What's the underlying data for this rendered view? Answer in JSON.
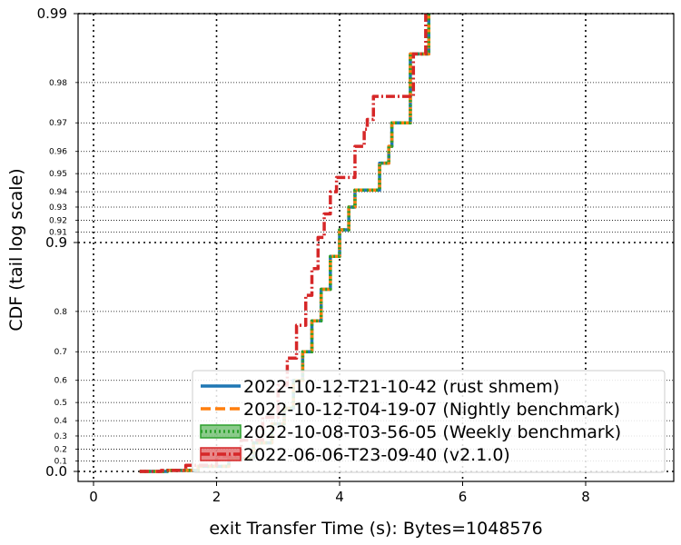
{
  "chart_data": {
    "type": "line",
    "xlabel": "exit Transfer Time (s): Bytes=1048576",
    "ylabel": "CDF (tail log scale)",
    "xlim": [
      -0.3,
      9.4
    ],
    "x_ticks": [
      0,
      2,
      4,
      6,
      8
    ],
    "y_scale": "tail-log",
    "y_major_ticks": [
      {
        "value": 0.0,
        "label": "0.0"
      },
      {
        "value": 0.9,
        "label": "0.9"
      },
      {
        "value": 0.99,
        "label": "0.99"
      }
    ],
    "y_minor_ticks": [
      {
        "value": 0.1,
        "label": "0.1"
      },
      {
        "value": 0.2,
        "label": "0.2"
      },
      {
        "value": 0.3,
        "label": "0.3"
      },
      {
        "value": 0.4,
        "label": "0.4"
      },
      {
        "value": 0.5,
        "label": "0.5"
      },
      {
        "value": 0.6,
        "label": "0.6"
      },
      {
        "value": 0.7,
        "label": "0.7"
      },
      {
        "value": 0.8,
        "label": "0.8"
      },
      {
        "value": 0.91,
        "label": "0.91"
      },
      {
        "value": 0.92,
        "label": "0.92"
      },
      {
        "value": 0.93,
        "label": "0.93"
      },
      {
        "value": 0.94,
        "label": "0.94"
      },
      {
        "value": 0.95,
        "label": "0.95"
      },
      {
        "value": 0.96,
        "label": "0.96"
      },
      {
        "value": 0.97,
        "label": "0.97"
      },
      {
        "value": 0.98,
        "label": "0.98"
      }
    ],
    "grid": true,
    "legend_position": "lower-right",
    "series": [
      {
        "name": "2022-10-12-T21-10-42 (rust shmem)",
        "color": "#1f77b4",
        "style": "solid",
        "points": [
          [
            0.75,
            0.0
          ],
          [
            1.2,
            0.01
          ],
          [
            1.7,
            0.05
          ],
          [
            2.2,
            0.12
          ],
          [
            2.6,
            0.25
          ],
          [
            2.9,
            0.38
          ],
          [
            3.1,
            0.47
          ],
          [
            3.25,
            0.6
          ],
          [
            3.4,
            0.7
          ],
          [
            3.55,
            0.78
          ],
          [
            3.7,
            0.84
          ],
          [
            3.85,
            0.885
          ],
          [
            4.0,
            0.912
          ],
          [
            4.15,
            0.93
          ],
          [
            4.25,
            0.941
          ],
          [
            4.6,
            0.941
          ],
          [
            4.65,
            0.955
          ],
          [
            4.8,
            0.962
          ],
          [
            4.85,
            0.97
          ],
          [
            5.1,
            0.97
          ],
          [
            5.15,
            0.985
          ],
          [
            5.35,
            0.985
          ],
          [
            5.45,
            0.99
          ]
        ]
      },
      {
        "name": "2022-10-12-T04-19-07 (Nightly benchmark)",
        "color": "#ff7f0e",
        "style": "dashed",
        "points": [
          [
            0.75,
            0.0
          ],
          [
            1.2,
            0.01
          ],
          [
            1.7,
            0.05
          ],
          [
            2.2,
            0.12
          ],
          [
            2.6,
            0.25
          ],
          [
            2.9,
            0.38
          ],
          [
            3.1,
            0.47
          ],
          [
            3.25,
            0.6
          ],
          [
            3.4,
            0.7
          ],
          [
            3.55,
            0.78
          ],
          [
            3.7,
            0.84
          ],
          [
            3.85,
            0.885
          ],
          [
            4.0,
            0.912
          ],
          [
            4.15,
            0.93
          ],
          [
            4.25,
            0.941
          ],
          [
            4.6,
            0.941
          ],
          [
            4.65,
            0.955
          ],
          [
            4.8,
            0.962
          ],
          [
            4.85,
            0.97
          ],
          [
            5.1,
            0.97
          ],
          [
            5.15,
            0.985
          ],
          [
            5.35,
            0.985
          ],
          [
            5.45,
            0.99
          ]
        ]
      },
      {
        "name": "2022-10-08-T03-56-05 (Weekly benchmark)",
        "color": "#2ca02c",
        "style": "dotted",
        "points": [
          [
            0.75,
            0.0
          ],
          [
            1.2,
            0.01
          ],
          [
            1.7,
            0.05
          ],
          [
            2.2,
            0.12
          ],
          [
            2.6,
            0.25
          ],
          [
            2.9,
            0.38
          ],
          [
            3.1,
            0.47
          ],
          [
            3.25,
            0.6
          ],
          [
            3.4,
            0.7
          ],
          [
            3.55,
            0.78
          ],
          [
            3.7,
            0.84
          ],
          [
            3.85,
            0.885
          ],
          [
            4.0,
            0.912
          ],
          [
            4.15,
            0.93
          ],
          [
            4.25,
            0.941
          ],
          [
            4.6,
            0.941
          ],
          [
            4.65,
            0.955
          ],
          [
            4.8,
            0.962
          ],
          [
            4.85,
            0.97
          ],
          [
            5.1,
            0.97
          ],
          [
            5.15,
            0.985
          ],
          [
            5.35,
            0.985
          ],
          [
            5.45,
            0.99
          ]
        ]
      },
      {
        "name": "2022-06-06-T23-09-40 (v2.1.0)",
        "color": "#d62728",
        "style": "dashdot",
        "points": [
          [
            0.75,
            0.0
          ],
          [
            1.1,
            0.01
          ],
          [
            1.5,
            0.06
          ],
          [
            2.0,
            0.14
          ],
          [
            2.4,
            0.27
          ],
          [
            2.75,
            0.42
          ],
          [
            3.0,
            0.58
          ],
          [
            3.15,
            0.68
          ],
          [
            3.3,
            0.77
          ],
          [
            3.45,
            0.83
          ],
          [
            3.55,
            0.87
          ],
          [
            3.65,
            0.905
          ],
          [
            3.75,
            0.925
          ],
          [
            3.85,
            0.94
          ],
          [
            3.95,
            0.948
          ],
          [
            4.15,
            0.948
          ],
          [
            4.25,
            0.962
          ],
          [
            4.4,
            0.968
          ],
          [
            4.45,
            0.971
          ],
          [
            4.55,
            0.971
          ],
          [
            4.55,
            0.977
          ],
          [
            5.2,
            0.977
          ],
          [
            5.2,
            0.985
          ],
          [
            5.35,
            0.985
          ],
          [
            5.4,
            0.99
          ]
        ]
      }
    ]
  }
}
